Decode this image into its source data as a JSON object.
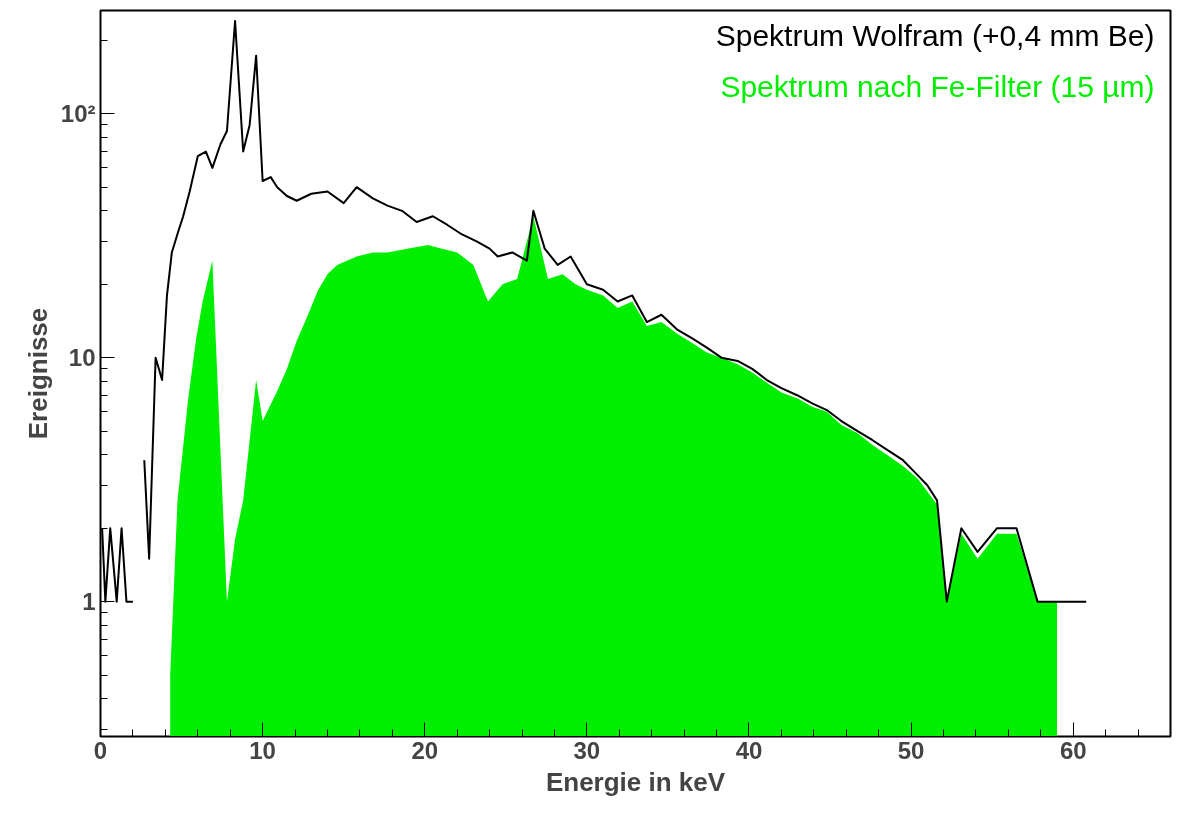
{
  "chart_data": {
    "type": "line",
    "xlabel": "Energie in keV",
    "ylabel": "Ereignisse",
    "log": "y",
    "xlim": [
      0,
      66
    ],
    "ylim": [
      0.28,
      265
    ],
    "xticks": [
      0,
      10,
      20,
      30,
      40,
      50,
      60
    ],
    "yticks": [
      1,
      10,
      {
        "value": 100,
        "label": "10²"
      }
    ],
    "grid": false,
    "legend": "top right",
    "series": [
      {
        "name": "Spektrum Wolfram (+0,4 mm Be)",
        "color": "#000000",
        "x": [
          0.1,
          0.3,
          0.6,
          1.0,
          1.3,
          1.6,
          2.0,
          2.4,
          2.7,
          3.0,
          3.4,
          3.8,
          4.1,
          4.4,
          4.8,
          5.1,
          5.5,
          6.0,
          6.5,
          6.9,
          7.4,
          7.8,
          8.3,
          8.8,
          9.2,
          9.6,
          10.0,
          10.5,
          10.9,
          11.5,
          12.1,
          13.0,
          14.0,
          15.0,
          15.8,
          16.8,
          17.7,
          18.6,
          19.5,
          20.5,
          21.4,
          22.3,
          23.2,
          24.0,
          24.5,
          25.4,
          26.3,
          26.7,
          27.4,
          28.2,
          29.0,
          30.0,
          31.0,
          31.9,
          32.8,
          33.7,
          34.6,
          35.6,
          36.5,
          37.4,
          38.3,
          39.3,
          40.2,
          41.1,
          42.0,
          43.0,
          43.9,
          44.8,
          45.7,
          46.7,
          47.6,
          48.5,
          49.5,
          50.4,
          51.0,
          51.6,
          52.2,
          53.1,
          54.1,
          55.3,
          56.5,
          57.8,
          59.0,
          60.8
        ],
        "values": [
          2,
          1,
          2,
          1,
          2,
          1,
          1,
          null,
          3.8,
          1.5,
          10,
          8.1,
          18,
          27,
          33,
          38,
          48,
          67,
          70,
          60,
          75,
          85,
          240,
          70,
          90,
          173,
          53,
          55,
          50,
          46,
          44,
          47,
          48,
          43,
          50,
          45,
          42,
          40,
          36,
          38,
          35,
          32,
          30,
          28,
          26,
          27,
          25,
          40,
          28,
          24,
          26,
          20,
          19,
          17,
          18,
          14,
          15,
          13,
          12,
          11,
          10,
          9.7,
          9,
          8.1,
          7.5,
          7,
          6.5,
          6.1,
          5.5,
          5,
          4.6,
          4.2,
          3.8,
          3.3,
          3,
          2.6,
          1,
          2,
          1.6,
          2,
          2,
          1,
          1,
          1
        ]
      },
      {
        "name": "Spektrum nach Fe-Filter (15 µm)",
        "color": "#00ee00",
        "type": "area",
        "x": [
          4.3,
          4.75,
          5.4,
          5.9,
          6.3,
          6.9,
          7.3,
          7.8,
          8.3,
          8.8,
          9.6,
          10.0,
          10.9,
          11.5,
          12.1,
          12.8,
          13.4,
          14.0,
          14.6,
          15.8,
          16.8,
          17.7,
          19.0,
          20.2,
          21.0,
          22.0,
          23.0,
          23.9,
          24.8,
          25.7,
          26.7,
          27.6,
          28.5,
          29.3,
          30.0,
          31.0,
          31.9,
          32.8,
          33.7,
          34.6,
          35.6,
          36.5,
          37.4,
          38.3,
          39.3,
          40.2,
          41.1,
          42.0,
          43.0,
          43.9,
          44.8,
          45.7,
          46.7,
          47.6,
          48.5,
          49.5,
          50.4,
          51.6,
          52.2,
          53.1,
          54.1,
          55.3,
          56.5,
          57.8,
          59.0
        ],
        "values": [
          0.5,
          2.6,
          6.7,
          12,
          17,
          25,
          null,
          1,
          1.8,
          2.6,
          8.1,
          5.5,
          7.3,
          9,
          11.7,
          15,
          18.8,
          22,
          24,
          26,
          27,
          27,
          28,
          29,
          28,
          27,
          24,
          17,
          20,
          21,
          38,
          21,
          22,
          20,
          19,
          18,
          16,
          17,
          13.5,
          14,
          12.5,
          11.5,
          10.5,
          10,
          9.4,
          8.7,
          7.9,
          7.2,
          6.8,
          6.3,
          6,
          5.3,
          4.9,
          4.4,
          4,
          3.6,
          3.2,
          2.5,
          1,
          1.9,
          1.5,
          1.9,
          1.9,
          1,
          1
        ]
      }
    ]
  }
}
